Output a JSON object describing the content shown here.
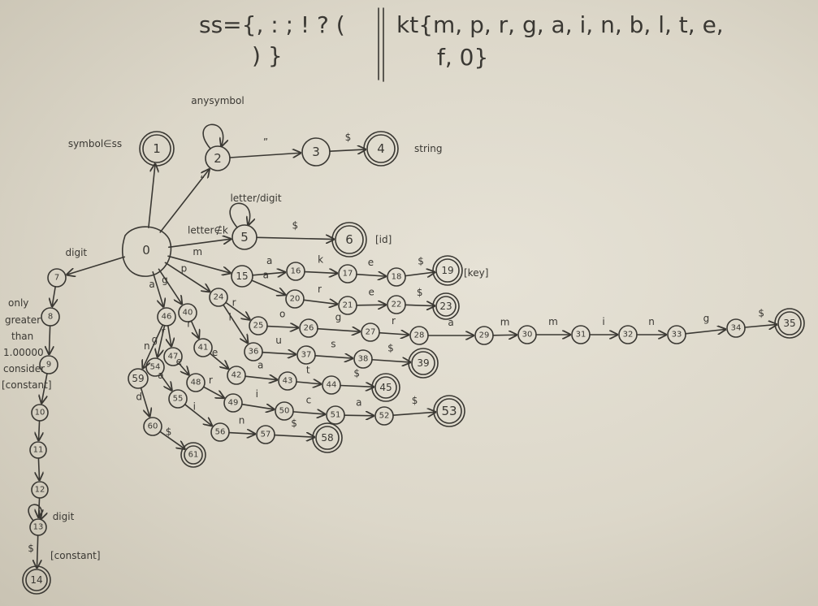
{
  "header": {
    "ss_line1": "ss={, : ; ! ? (",
    "ss_line2": ") }",
    "kt_line1": "kt{m, p, r, g, a, i, n, b, l, t, e,",
    "kt_line2": "f, 0}"
  },
  "diagram": {
    "states": [
      {
        "id": "0",
        "accept": false
      },
      {
        "id": "1",
        "accept": true
      },
      {
        "id": "2",
        "accept": false
      },
      {
        "id": "3",
        "accept": false
      },
      {
        "id": "4",
        "accept": true,
        "tag": "string"
      },
      {
        "id": "5",
        "accept": false
      },
      {
        "id": "6",
        "accept": true,
        "tag": "[id]"
      },
      {
        "id": "7",
        "accept": false
      },
      {
        "id": "8",
        "accept": false
      },
      {
        "id": "9",
        "accept": false
      },
      {
        "id": "10",
        "accept": false
      },
      {
        "id": "11",
        "accept": false
      },
      {
        "id": "12",
        "accept": false
      },
      {
        "id": "13",
        "accept": false
      },
      {
        "id": "14",
        "accept": true,
        "tag": "[constant]"
      },
      {
        "id": "15",
        "accept": false
      },
      {
        "id": "16",
        "accept": false
      },
      {
        "id": "17",
        "accept": false
      },
      {
        "id": "18",
        "accept": false
      },
      {
        "id": "19",
        "accept": true,
        "tag": "[key]"
      },
      {
        "id": "20",
        "accept": false
      },
      {
        "id": "21",
        "accept": false
      },
      {
        "id": "22",
        "accept": false
      },
      {
        "id": "23",
        "accept": true
      },
      {
        "id": "24",
        "accept": false
      },
      {
        "id": "25",
        "accept": false
      },
      {
        "id": "26",
        "accept": false
      },
      {
        "id": "27",
        "accept": false
      },
      {
        "id": "28",
        "accept": false
      },
      {
        "id": "29",
        "accept": false
      },
      {
        "id": "30",
        "accept": false
      },
      {
        "id": "31",
        "accept": false
      },
      {
        "id": "32",
        "accept": false
      },
      {
        "id": "33",
        "accept": false
      },
      {
        "id": "34",
        "accept": false
      },
      {
        "id": "35",
        "accept": true
      },
      {
        "id": "36",
        "accept": false
      },
      {
        "id": "37",
        "accept": false
      },
      {
        "id": "38",
        "accept": false
      },
      {
        "id": "39",
        "accept": true
      },
      {
        "id": "40",
        "accept": false
      },
      {
        "id": "41",
        "accept": false
      },
      {
        "id": "42",
        "accept": false
      },
      {
        "id": "43",
        "accept": false
      },
      {
        "id": "44",
        "accept": false
      },
      {
        "id": "45",
        "accept": true
      },
      {
        "id": "46",
        "accept": false
      },
      {
        "id": "47",
        "accept": false
      },
      {
        "id": "48",
        "accept": false
      },
      {
        "id": "49",
        "accept": false
      },
      {
        "id": "50",
        "accept": false
      },
      {
        "id": "51",
        "accept": false
      },
      {
        "id": "52",
        "accept": false
      },
      {
        "id": "53",
        "accept": true
      },
      {
        "id": "54",
        "accept": false
      },
      {
        "id": "55",
        "accept": false
      },
      {
        "id": "56",
        "accept": false
      },
      {
        "id": "57",
        "accept": false
      },
      {
        "id": "58",
        "accept": true
      },
      {
        "id": "59",
        "accept": false
      },
      {
        "id": "60",
        "accept": false
      },
      {
        "id": "61",
        "accept": true
      }
    ],
    "transitions": [
      {
        "from": "0",
        "to": "1",
        "label": "symbol∈ss"
      },
      {
        "from": "0",
        "to": "2",
        "label": "“"
      },
      {
        "from": "2",
        "to": "2",
        "label": "anysymbol"
      },
      {
        "from": "2",
        "to": "3",
        "label": "”"
      },
      {
        "from": "3",
        "to": "4",
        "label": "$"
      },
      {
        "from": "0",
        "to": "5",
        "label": "letter∉k"
      },
      {
        "from": "5",
        "to": "5",
        "label": "letter/digit"
      },
      {
        "from": "5",
        "to": "6",
        "label": "$"
      },
      {
        "from": "0",
        "to": "7",
        "label": "digit"
      },
      {
        "from": "7",
        "to": "8",
        "label": ""
      },
      {
        "from": "8",
        "to": "9",
        "label": ""
      },
      {
        "from": "9",
        "to": "10",
        "label": ""
      },
      {
        "from": "10",
        "to": "11",
        "label": ""
      },
      {
        "from": "11",
        "to": "12",
        "label": ""
      },
      {
        "from": "12",
        "to": "13",
        "label": ""
      },
      {
        "from": "13",
        "to": "13",
        "label": "digit"
      },
      {
        "from": "13",
        "to": "14",
        "label": "$"
      },
      {
        "from": "0",
        "to": "15",
        "label": "m"
      },
      {
        "from": "15",
        "to": "16",
        "label": "a"
      },
      {
        "from": "16",
        "to": "17",
        "label": "k"
      },
      {
        "from": "17",
        "to": "18",
        "label": "e"
      },
      {
        "from": "18",
        "to": "19",
        "label": "$"
      },
      {
        "from": "15",
        "to": "20",
        "label": "a"
      },
      {
        "from": "20",
        "to": "21",
        "label": "r"
      },
      {
        "from": "21",
        "to": "22",
        "label": "e"
      },
      {
        "from": "22",
        "to": "23",
        "label": "$"
      },
      {
        "from": "0",
        "to": "24",
        "label": "p"
      },
      {
        "from": "24",
        "to": "25",
        "label": "r"
      },
      {
        "from": "25",
        "to": "26",
        "label": "o"
      },
      {
        "from": "26",
        "to": "27",
        "label": "g"
      },
      {
        "from": "27",
        "to": "28",
        "label": "r"
      },
      {
        "from": "28",
        "to": "29",
        "label": "a"
      },
      {
        "from": "29",
        "to": "30",
        "label": "m"
      },
      {
        "from": "30",
        "to": "31",
        "label": "m"
      },
      {
        "from": "31",
        "to": "32",
        "label": "i"
      },
      {
        "from": "32",
        "to": "33",
        "label": "n"
      },
      {
        "from": "33",
        "to": "34",
        "label": "g"
      },
      {
        "from": "34",
        "to": "35",
        "label": "$"
      },
      {
        "from": "24",
        "to": "36",
        "label": "l"
      },
      {
        "from": "36",
        "to": "37",
        "label": "u"
      },
      {
        "from": "37",
        "to": "38",
        "label": "s"
      },
      {
        "from": "38",
        "to": "39",
        "label": "$"
      },
      {
        "from": "0",
        "to": "40",
        "label": "g"
      },
      {
        "from": "40",
        "to": "41",
        "label": "r"
      },
      {
        "from": "41",
        "to": "42",
        "label": "e"
      },
      {
        "from": "42",
        "to": "43",
        "label": "a"
      },
      {
        "from": "43",
        "to": "44",
        "label": "t"
      },
      {
        "from": "44",
        "to": "45",
        "label": "$"
      },
      {
        "from": "0",
        "to": "46",
        "label": "a"
      },
      {
        "from": "46",
        "to": "47",
        "label": "r"
      },
      {
        "from": "47",
        "to": "48",
        "label": "e"
      },
      {
        "from": "48",
        "to": "49",
        "label": "r"
      },
      {
        "from": "49",
        "to": "50",
        "label": "i"
      },
      {
        "from": "50",
        "to": "51",
        "label": "c"
      },
      {
        "from": "51",
        "to": "52",
        "label": "a"
      },
      {
        "from": "52",
        "to": "53",
        "label": "$"
      },
      {
        "from": "46",
        "to": "54",
        "label": "g"
      },
      {
        "from": "54",
        "to": "55",
        "label": "a"
      },
      {
        "from": "55",
        "to": "56",
        "label": "i"
      },
      {
        "from": "56",
        "to": "57",
        "label": "n"
      },
      {
        "from": "57",
        "to": "58",
        "label": "$"
      },
      {
        "from": "46",
        "to": "59",
        "label": "n"
      },
      {
        "from": "59",
        "to": "60",
        "label": "d"
      },
      {
        "from": "60",
        "to": "61",
        "label": "$"
      }
    ],
    "notes": [
      {
        "id": "note-only",
        "text": "only"
      },
      {
        "id": "note-greater",
        "text": "greater"
      },
      {
        "id": "note-than",
        "text": "than"
      },
      {
        "id": "note-number",
        "text": "1.00000"
      },
      {
        "id": "note-consider",
        "text": "consider"
      },
      {
        "id": "note-constant",
        "text": "[constant]"
      }
    ]
  }
}
